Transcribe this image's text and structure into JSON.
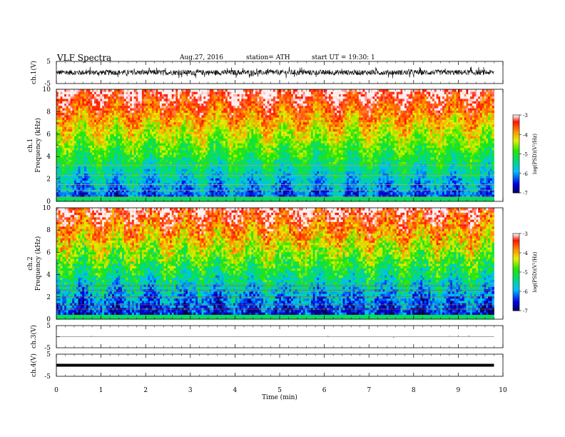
{
  "header": {
    "title": "VLF Spectra",
    "date": "Aug.27, 2016",
    "station": "station= ATH",
    "start_ut": "start UT =   19:30: 1"
  },
  "chart_data": [
    {
      "type": "line",
      "ylabel": "ch.1(V)",
      "ylim": [
        -5,
        5
      ],
      "yticks": [
        "5",
        "-5"
      ],
      "description_mode": "waveform",
      "amplitude": 1.2
    },
    {
      "type": "heatmap",
      "ylabel_top": "ch.1",
      "ylabel": "Frequency (kHz)",
      "ylim": [
        0,
        10
      ],
      "yticks": [
        "0",
        "2",
        "4",
        "6",
        "8",
        "10"
      ],
      "colorbar": {
        "label": "log(PSD)(V²/Hz)",
        "ticks": [
          "-3",
          "-4",
          "-5",
          "-6",
          "-7"
        ],
        "range": [
          -7,
          -3
        ]
      }
    },
    {
      "type": "heatmap",
      "ylabel_top": "ch.2",
      "ylabel": "Frequency (kHz)",
      "ylim": [
        0,
        10
      ],
      "yticks": [
        "0",
        "2",
        "4",
        "6",
        "8",
        "10"
      ],
      "colorbar": {
        "label": "log(PSD)(V²/Hz)",
        "ticks": [
          "-3",
          "-4",
          "-5",
          "-6",
          "-7"
        ],
        "range": [
          -7,
          -3
        ]
      }
    },
    {
      "type": "line",
      "ylabel": "ch.3(V)",
      "ylim": [
        -5,
        5
      ],
      "yticks": [
        "5",
        "-5"
      ],
      "amplitude": 0.05
    },
    {
      "type": "line",
      "ylabel": "ch.4(V)",
      "ylim": [
        -5,
        5
      ],
      "yticks": [
        "5",
        "-5"
      ],
      "amplitude": 0.3
    }
  ],
  "xaxis": {
    "label": "Time (min)",
    "ticks": [
      "0",
      "1",
      "2",
      "3",
      "4",
      "5",
      "6",
      "7",
      "8",
      "9",
      "10"
    ],
    "range": [
      0,
      10
    ],
    "data_end": 9.8
  }
}
